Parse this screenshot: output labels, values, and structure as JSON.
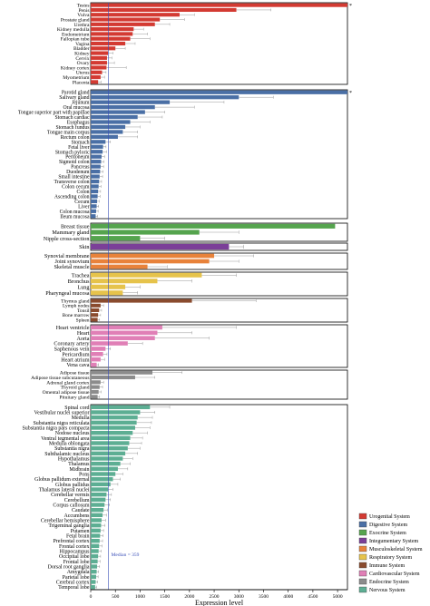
{
  "chart_data": {
    "type": "bar",
    "orientation": "horizontal",
    "xlabel": "Expression level",
    "xlim": [
      0,
      5200
    ],
    "xticks": [
      0,
      500,
      1000,
      1500,
      2000,
      2500,
      3000,
      3500,
      4000,
      4500,
      5000
    ],
    "median": {
      "value": 359,
      "label": "Median = 359"
    },
    "series_colors": {
      "Urogenital System": "#d33a32",
      "Digestive System": "#4a6fa5",
      "Exocrine System": "#55a44e",
      "Integumentary System": "#7b3f98",
      "Musculoskeletal System": "#e8823a",
      "Respiratory System": "#e6c34b",
      "Immune System": "#8a4b2e",
      "Cardiovascular System": "#e07fb6",
      "Endocrine System": "#8c8c8c",
      "Nervous System": "#5dae93"
    },
    "legend": {
      "placement": "bottom-right",
      "entries": [
        "Urogenital System",
        "Digestive System",
        "Exocrine System",
        "Integumentary System",
        "Musculoskeletal System",
        "Respiratory System",
        "Immune System",
        "Cardiovascular System",
        "Endocrine System",
        "Nervous System"
      ]
    },
    "groups": [
      {
        "system": "Urogenital System",
        "bars": [
          {
            "label": "Testes",
            "value": 5200,
            "error": 0,
            "star": "*"
          },
          {
            "label": "Penis",
            "value": 2950,
            "error": 700
          },
          {
            "label": "Vulva",
            "value": 1800,
            "error": 300
          },
          {
            "label": "Prostate gland",
            "value": 1400,
            "error": 500
          },
          {
            "label": "Urethra",
            "value": 1300,
            "error": 300
          },
          {
            "label": "Kidney medulla",
            "value": 870,
            "error": 200
          },
          {
            "label": "Endometrium",
            "value": 850,
            "error": 300
          },
          {
            "label": "Fallopian tube",
            "value": 800,
            "error": 400
          },
          {
            "label": "Vagina",
            "value": 700,
            "error": 200
          },
          {
            "label": "Bladder",
            "value": 500,
            "error": 200
          },
          {
            "label": "Kidney",
            "value": 350,
            "error": 100
          },
          {
            "label": "Cervix",
            "value": 330,
            "error": 100
          },
          {
            "label": "Ovary",
            "value": 330,
            "error": 150
          },
          {
            "label": "Kidney cortex",
            "value": 320,
            "error": 400
          },
          {
            "label": "Uterus",
            "value": 230,
            "error": 80
          },
          {
            "label": "Myometrium",
            "value": 200,
            "error": 80
          },
          {
            "label": "Placenta",
            "value": 150,
            "error": 60
          }
        ]
      },
      {
        "system": "Digestive System",
        "bars": [
          {
            "label": "Parotid gland",
            "value": 5200,
            "error": 0,
            "star": "*"
          },
          {
            "label": "Salivary gland",
            "value": 3000,
            "error": 700
          },
          {
            "label": "Jejunum",
            "value": 1600,
            "error": 1100
          },
          {
            "label": "Oral mucosa",
            "value": 1300,
            "error": 800
          },
          {
            "label": "Tongue superior part with papillae",
            "value": 1100,
            "error": 400
          },
          {
            "label": "Stomach cardiac",
            "value": 950,
            "error": 500
          },
          {
            "label": "Esophagus",
            "value": 800,
            "error": 400
          },
          {
            "label": "Stomach fundus",
            "value": 700,
            "error": 300
          },
          {
            "label": "Tongue main corpus",
            "value": 650,
            "error": 300
          },
          {
            "label": "Rectum colon",
            "value": 550,
            "error": 400
          },
          {
            "label": "Stomach",
            "value": 300,
            "error": 100
          },
          {
            "label": "Fetal liver",
            "value": 250,
            "error": 60
          },
          {
            "label": "Stomach pyloric",
            "value": 240,
            "error": 80
          },
          {
            "label": "Peritoneum",
            "value": 220,
            "error": 60
          },
          {
            "label": "Sigmoid colon",
            "value": 210,
            "error": 60
          },
          {
            "label": "Pancreas",
            "value": 200,
            "error": 60
          },
          {
            "label": "Duodenum",
            "value": 190,
            "error": 60
          },
          {
            "label": "Small intestine",
            "value": 180,
            "error": 60
          },
          {
            "label": "Transverse colon",
            "value": 170,
            "error": 50
          },
          {
            "label": "Colon cecum",
            "value": 160,
            "error": 50
          },
          {
            "label": "Colon",
            "value": 150,
            "error": 50
          },
          {
            "label": "Ascending colon",
            "value": 140,
            "error": 50
          },
          {
            "label": "Cecum",
            "value": 130,
            "error": 40
          },
          {
            "label": "Liver",
            "value": 120,
            "error": 40
          },
          {
            "label": "Colon mucosa",
            "value": 110,
            "error": 40
          },
          {
            "label": "Ileum mucosa",
            "value": 100,
            "error": 40
          }
        ]
      },
      {
        "system": "Exocrine System",
        "bars": [
          {
            "label": "Breast tissue",
            "value": 4950,
            "error": 0
          },
          {
            "label": "Mammary gland",
            "value": 2200,
            "error": 800
          },
          {
            "label": "Nipple cross-section",
            "value": 1000,
            "error": 500
          }
        ]
      },
      {
        "system": "Integumentary System",
        "bars": [
          {
            "label": "Skin",
            "value": 2800,
            "error": 300
          }
        ]
      },
      {
        "system": "Musculoskeletal System",
        "bars": [
          {
            "label": "Synovial membrane",
            "value": 2500,
            "error": 800
          },
          {
            "label": "Joint synovium",
            "value": 2400,
            "error": 600
          },
          {
            "label": "Skeletal muscle",
            "value": 1150,
            "error": 400
          }
        ]
      },
      {
        "system": "Respiratory System",
        "bars": [
          {
            "label": "Trachea",
            "value": 2250,
            "error": 700
          },
          {
            "label": "Bronchus",
            "value": 1350,
            "error": 700
          },
          {
            "label": "Lung",
            "value": 700,
            "error": 300
          },
          {
            "label": "Pharyngeal mucosa",
            "value": 650,
            "error": 300
          }
        ]
      },
      {
        "system": "Immune System",
        "bars": [
          {
            "label": "Thymus gland",
            "value": 2050,
            "error": 1300
          },
          {
            "label": "Lymph nodes",
            "value": 200,
            "error": 60
          },
          {
            "label": "Tonsil",
            "value": 170,
            "error": 50
          },
          {
            "label": "Bone marrow",
            "value": 150,
            "error": 50
          },
          {
            "label": "Spleen",
            "value": 140,
            "error": 40
          }
        ]
      },
      {
        "system": "Cardiovascular System",
        "bars": [
          {
            "label": "Heart ventricle",
            "value": 1450,
            "error": 1500
          },
          {
            "label": "Heart",
            "value": 1350,
            "error": 700
          },
          {
            "label": "Aorta",
            "value": 1300,
            "error": 1100
          },
          {
            "label": "Coronary artery",
            "value": 750,
            "error": 300
          },
          {
            "label": "Saphenous vein",
            "value": 300,
            "error": 100
          },
          {
            "label": "Pericardium",
            "value": 250,
            "error": 80
          },
          {
            "label": "Heart atrium",
            "value": 200,
            "error": 80
          },
          {
            "label": "Vena cava",
            "value": 120,
            "error": 40
          }
        ]
      },
      {
        "system": "Endocrine System",
        "bars": [
          {
            "label": "Adipose tissue",
            "value": 1250,
            "error": 600
          },
          {
            "label": "Adipose tissue subcutaneous",
            "value": 900,
            "error": 400
          },
          {
            "label": "Adrenal gland cortex",
            "value": 200,
            "error": 60
          },
          {
            "label": "Thyroid gland",
            "value": 180,
            "error": 60
          },
          {
            "label": "Omental adipose tissue",
            "value": 160,
            "error": 50
          },
          {
            "label": "Pituitary gland",
            "value": 140,
            "error": 40
          }
        ]
      },
      {
        "system": "Nervous System",
        "bars": [
          {
            "label": "Spinal cord",
            "value": 1200,
            "error": 400
          },
          {
            "label": "Vestibular nuclei superior",
            "value": 1000,
            "error": 300
          },
          {
            "label": "Medulla",
            "value": 950,
            "error": 300
          },
          {
            "label": "Substantia nigra reticulata",
            "value": 930,
            "error": 300
          },
          {
            "label": "Substantia nigra pars compacta",
            "value": 900,
            "error": 300
          },
          {
            "label": "Nodose nucleus",
            "value": 850,
            "error": 300
          },
          {
            "label": "Ventral tegmental area",
            "value": 800,
            "error": 250
          },
          {
            "label": "Medulla oblongata",
            "value": 780,
            "error": 250
          },
          {
            "label": "Substantia nigra",
            "value": 750,
            "error": 250
          },
          {
            "label": "Subthalamic nucleus",
            "value": 700,
            "error": 250
          },
          {
            "label": "Hypothalamus",
            "value": 650,
            "error": 200
          },
          {
            "label": "Thalamus",
            "value": 600,
            "error": 200
          },
          {
            "label": "Midbrain",
            "value": 550,
            "error": 200
          },
          {
            "label": "Pons",
            "value": 500,
            "error": 150
          },
          {
            "label": "Globus pallidum external",
            "value": 450,
            "error": 150
          },
          {
            "label": "Globus pallidus",
            "value": 400,
            "error": 150
          },
          {
            "label": "Thalamus lateral nuclei",
            "value": 350,
            "error": 100
          },
          {
            "label": "Cerebellar vermis",
            "value": 320,
            "error": 100
          },
          {
            "label": "Cerebellum",
            "value": 300,
            "error": 100
          },
          {
            "label": "Corpus callosum",
            "value": 280,
            "error": 100
          },
          {
            "label": "Caudate",
            "value": 260,
            "error": 80
          },
          {
            "label": "Accumbens",
            "value": 240,
            "error": 80
          },
          {
            "label": "Cerebellar hemisphere",
            "value": 220,
            "error": 80
          },
          {
            "label": "Trigeminal ganglia",
            "value": 210,
            "error": 80
          },
          {
            "label": "Putamen",
            "value": 200,
            "error": 60
          },
          {
            "label": "Fetal brain",
            "value": 190,
            "error": 60
          },
          {
            "label": "Prefrontal cortex",
            "value": 180,
            "error": 60
          },
          {
            "label": "Frontal cortex",
            "value": 170,
            "error": 60
          },
          {
            "label": "Hippocampus",
            "value": 160,
            "error": 50
          },
          {
            "label": "Occipital lobe",
            "value": 150,
            "error": 50
          },
          {
            "label": "Frontal lobe",
            "value": 140,
            "error": 50
          },
          {
            "label": "Dorsal root ganglia",
            "value": 130,
            "error": 50
          },
          {
            "label": "Amygdala",
            "value": 120,
            "error": 40
          },
          {
            "label": "Parietal lobe",
            "value": 110,
            "error": 40
          },
          {
            "label": "Cerebral cortex",
            "value": 100,
            "error": 40
          },
          {
            "label": "Temporal lobe",
            "value": 90,
            "error": 30
          }
        ]
      }
    ]
  }
}
